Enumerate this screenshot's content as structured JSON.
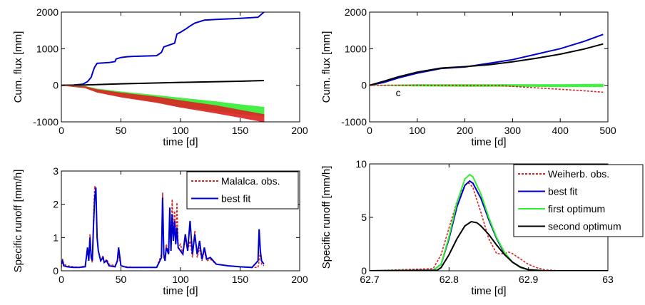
{
  "chart_data": [
    {
      "type": "line",
      "xlabel": "time [d]",
      "ylabel": "Cum. flux [mm]",
      "xlim": [
        0,
        200
      ],
      "ylim": [
        -1000,
        2000
      ],
      "xticks": [
        "0",
        "50",
        "100",
        "150",
        "200"
      ],
      "yticks": [
        "-1000",
        "0",
        "1000",
        "2000"
      ],
      "grid": false,
      "legend": "none",
      "series": [
        {
          "color": "#0000cc",
          "style": "solid",
          "x": [
            0,
            10,
            18,
            22,
            25,
            27,
            28,
            30,
            40,
            45,
            46,
            50,
            55,
            60,
            70,
            80,
            84,
            86,
            95,
            97,
            100,
            105,
            108,
            112,
            120,
            130,
            150,
            165,
            170
          ],
          "y": [
            0,
            5,
            30,
            100,
            220,
            420,
            500,
            600,
            620,
            650,
            720,
            760,
            780,
            790,
            800,
            810,
            900,
            1050,
            1150,
            1400,
            1450,
            1550,
            1620,
            1700,
            1780,
            1800,
            1830,
            1860,
            2000
          ]
        },
        {
          "color": "#000000",
          "style": "solid",
          "x": [
            0,
            20,
            50,
            100,
            150,
            170
          ],
          "y": [
            0,
            10,
            40,
            80,
            110,
            130
          ]
        },
        {
          "color": "#33ee33",
          "style": "band",
          "x": [
            0,
            20,
            30,
            50,
            80,
            100,
            130,
            150,
            170
          ],
          "y_upper": [
            0,
            -30,
            -100,
            -180,
            -280,
            -350,
            -450,
            -530,
            -600
          ],
          "y_lower": [
            0,
            -60,
            -180,
            -300,
            -450,
            -580,
            -700,
            -780,
            -840
          ]
        },
        {
          "color": "#dd2222",
          "style": "band",
          "x": [
            0,
            20,
            30,
            50,
            80,
            100,
            130,
            150,
            170
          ],
          "y_upper": [
            0,
            -40,
            -120,
            -210,
            -320,
            -420,
            -560,
            -680,
            -800
          ],
          "y_lower": [
            0,
            -70,
            -190,
            -320,
            -470,
            -600,
            -760,
            -880,
            -1000
          ]
        }
      ]
    },
    {
      "type": "line",
      "xlabel": "time [d]",
      "ylabel": "Cum. flux [mm]",
      "xlim": [
        0,
        500
      ],
      "ylim": [
        -1000,
        2000
      ],
      "xticks": [
        "0",
        "100",
        "200",
        "300",
        "400",
        "500"
      ],
      "yticks": [
        "-1000",
        "0",
        "1000",
        "2000"
      ],
      "grid": false,
      "legend": "none",
      "annotation": "c",
      "series": [
        {
          "color": "#0000cc",
          "style": "solid",
          "x": [
            0,
            30,
            60,
            100,
            150,
            200,
            250,
            300,
            350,
            400,
            450,
            490
          ],
          "y": [
            0,
            80,
            200,
            330,
            460,
            500,
            600,
            700,
            850,
            1000,
            1200,
            1390
          ]
        },
        {
          "color": "#000000",
          "style": "solid",
          "x": [
            0,
            30,
            60,
            100,
            150,
            200,
            250,
            300,
            350,
            400,
            450,
            490
          ],
          "y": [
            0,
            110,
            230,
            360,
            470,
            510,
            560,
            640,
            740,
            850,
            990,
            1130
          ]
        },
        {
          "color": "#33ee33",
          "style": "band",
          "x": [
            0,
            100,
            200,
            300,
            400,
            490
          ],
          "y_upper": [
            0,
            20,
            20,
            20,
            20,
            30
          ],
          "y_lower": [
            0,
            -20,
            -30,
            -30,
            -40,
            -40
          ]
        },
        {
          "color": "#dd2222",
          "style": "dashed",
          "x": [
            0,
            100,
            200,
            280,
            300,
            350,
            400,
            450,
            490
          ],
          "y": [
            0,
            0,
            -5,
            -10,
            -30,
            -70,
            -110,
            -150,
            -190
          ]
        }
      ]
    },
    {
      "type": "line",
      "xlabel": "time [d]",
      "ylabel": "Specific runoff [mm/h]",
      "xlim": [
        0,
        200
      ],
      "ylim": [
        0,
        3
      ],
      "xticks": [
        "0",
        "50",
        "100",
        "150",
        "200"
      ],
      "yticks": [
        "0",
        "1",
        "2",
        "3"
      ],
      "grid": false,
      "legend": "top-right",
      "series": [
        {
          "name": "Malalca. obs.",
          "color": "#dd2222",
          "style": "dashed",
          "x": [
            0,
            1,
            2,
            5,
            10,
            15,
            20,
            22,
            23,
            24,
            25,
            26,
            27,
            28,
            29,
            30,
            31,
            33,
            35,
            36,
            38,
            40,
            45,
            47,
            48,
            50,
            55,
            60,
            70,
            80,
            84,
            85,
            86,
            87,
            88,
            90,
            91,
            92,
            93,
            94,
            95,
            96,
            97,
            98,
            100,
            102,
            104,
            106,
            108,
            110,
            112,
            114,
            116,
            118,
            120,
            122,
            125,
            130,
            140,
            150,
            160,
            165,
            166,
            167,
            168,
            170
          ],
          "y": [
            0.1,
            0.35,
            0.2,
            0.15,
            0.12,
            0.1,
            0.15,
            0.6,
            0.3,
            1.1,
            0.4,
            0.25,
            1.6,
            2.55,
            2.4,
            1.0,
            0.6,
            0.3,
            0.45,
            0.25,
            0.35,
            0.2,
            0.15,
            0.3,
            0.5,
            0.15,
            0.12,
            0.1,
            0.1,
            0.1,
            0.5,
            2.35,
            0.4,
            0.3,
            0.8,
            0.5,
            1.7,
            0.6,
            2.15,
            0.9,
            1.8,
            0.8,
            2.05,
            0.7,
            0.8,
            0.5,
            1.0,
            0.6,
            0.9,
            0.4,
            1.2,
            0.4,
            0.7,
            0.3,
            0.6,
            0.3,
            0.35,
            0.2,
            0.15,
            0.12,
            0.1,
            0.1,
            0.3,
            0.6,
            0.2,
            0.15
          ]
        },
        {
          "name": "best fit",
          "color": "#0000cc",
          "style": "solid",
          "x": [
            0,
            1,
            2,
            5,
            10,
            15,
            20,
            22,
            23,
            24,
            25,
            26,
            27,
            28,
            29,
            30,
            31,
            33,
            35,
            36,
            38,
            40,
            45,
            47,
            48,
            50,
            55,
            60,
            70,
            80,
            84,
            85,
            86,
            87,
            88,
            90,
            91,
            92,
            93,
            94,
            95,
            96,
            97,
            98,
            100,
            102,
            104,
            106,
            108,
            110,
            112,
            114,
            116,
            118,
            120,
            122,
            125,
            130,
            140,
            150,
            160,
            165,
            166,
            167,
            168,
            170
          ],
          "y": [
            0.2,
            0.3,
            0.15,
            0.12,
            0.1,
            0.1,
            0.12,
            0.7,
            0.3,
            1.0,
            0.4,
            0.3,
            1.4,
            2.2,
            2.5,
            1.0,
            0.6,
            0.3,
            0.4,
            0.25,
            0.3,
            0.15,
            0.12,
            0.3,
            0.7,
            0.15,
            0.1,
            0.1,
            0.1,
            0.1,
            0.4,
            2.2,
            0.5,
            0.3,
            0.7,
            0.5,
            1.9,
            0.6,
            1.7,
            0.9,
            1.5,
            0.8,
            1.3,
            0.7,
            0.6,
            0.5,
            1.1,
            0.6,
            1.5,
            0.5,
            1.1,
            0.5,
            0.9,
            0.35,
            0.7,
            0.35,
            0.4,
            0.2,
            0.15,
            0.12,
            0.1,
            0.3,
            1.25,
            0.6,
            0.3,
            0.2
          ]
        }
      ]
    },
    {
      "type": "line",
      "xlabel": "time [d]",
      "ylabel": "Specific runoff [mm/h]",
      "xlim": [
        62.7,
        63
      ],
      "ylim": [
        0,
        10
      ],
      "xticks": [
        "62.7",
        "62.8",
        "62.9",
        "63"
      ],
      "yticks": [
        "0",
        "5",
        "10"
      ],
      "grid": false,
      "legend": "top-right",
      "series": [
        {
          "name": "Weiherb. obs.",
          "color": "#dd2222",
          "style": "dashed",
          "x": [
            62.7,
            62.78,
            62.79,
            62.8,
            62.81,
            62.82,
            62.825,
            62.83,
            62.84,
            62.85,
            62.86,
            62.87,
            62.875,
            62.88,
            62.89,
            62.9,
            62.91,
            62.92,
            62.94,
            63.0
          ],
          "y": [
            0,
            0.2,
            1.5,
            4.0,
            6.5,
            8.0,
            8.2,
            7.8,
            5.5,
            3.0,
            1.6,
            1.6,
            1.75,
            1.6,
            1.1,
            0.6,
            0.3,
            0.1,
            0.0,
            0.0
          ]
        },
        {
          "name": "best fit",
          "color": "#0000cc",
          "style": "solid",
          "x": [
            62.7,
            62.78,
            62.79,
            62.8,
            62.81,
            62.82,
            62.826,
            62.83,
            62.84,
            62.85,
            62.86,
            62.87,
            62.88,
            62.89,
            62.9,
            62.92,
            63.0
          ],
          "y": [
            0,
            0.05,
            0.6,
            3.0,
            6.0,
            8.0,
            8.4,
            8.2,
            6.8,
            4.8,
            3.0,
            1.6,
            0.8,
            0.3,
            0.1,
            0.0,
            0.0
          ]
        },
        {
          "name": "first optimum",
          "color": "#33ee33",
          "style": "solid",
          "x": [
            62.7,
            62.78,
            62.79,
            62.8,
            62.81,
            62.82,
            62.826,
            62.83,
            62.84,
            62.85,
            62.86,
            62.87,
            62.88,
            62.89,
            62.9,
            62.92,
            63.0
          ],
          "y": [
            0,
            0.05,
            0.6,
            3.2,
            6.4,
            8.6,
            9.0,
            8.8,
            7.2,
            5.0,
            3.1,
            1.7,
            0.8,
            0.3,
            0.1,
            0.0,
            0.0
          ]
        },
        {
          "name": "second optimum",
          "color": "#000000",
          "style": "solid",
          "x": [
            62.7,
            62.785,
            62.79,
            62.8,
            62.81,
            62.82,
            62.828,
            62.835,
            62.84,
            62.85,
            62.86,
            62.87,
            62.88,
            62.89,
            62.9,
            62.92,
            63.0
          ],
          "y": [
            0,
            0.05,
            0.3,
            1.5,
            3.0,
            4.2,
            4.6,
            4.5,
            4.2,
            3.4,
            2.4,
            1.5,
            0.8,
            0.35,
            0.1,
            0.0,
            0.0
          ]
        }
      ]
    }
  ]
}
